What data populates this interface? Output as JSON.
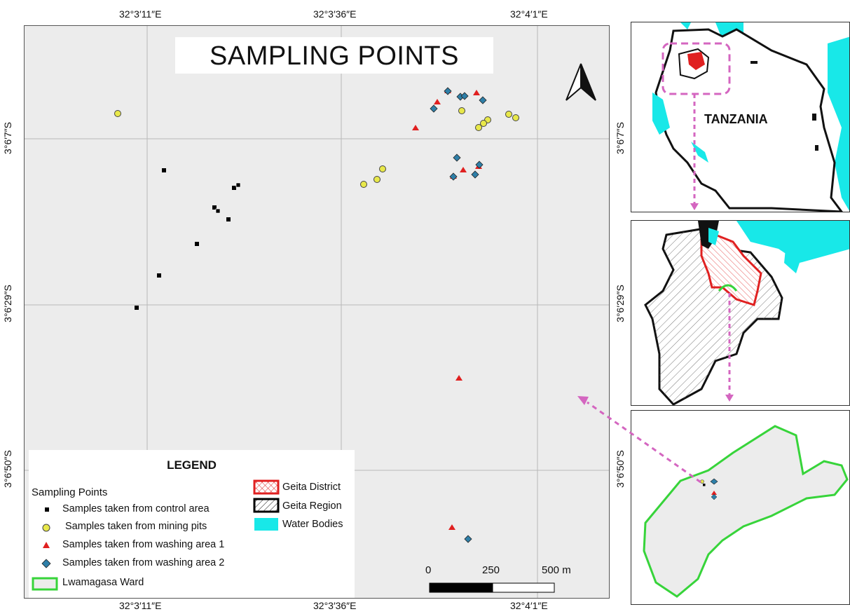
{
  "map": {
    "title": "SAMPLING POINTS",
    "coords": {
      "top": [
        "32°3′11″E",
        "32°3′36″E",
        "32°4′1″E"
      ],
      "bottom": [
        "32°3′11″E",
        "32°3′36″E",
        "32°4′1″E"
      ],
      "left": [
        "3°6′7″S",
        "3°6′29″S",
        "3°6′50″S"
      ],
      "right": [
        "3°6′7″S",
        "3°6′29″S",
        "3°6′50″S"
      ]
    },
    "north_arrow": "north-arrow",
    "scale": {
      "labels": [
        "0",
        "250",
        "500 m"
      ]
    }
  },
  "legend": {
    "title": "LEGEND",
    "subtitle": "Sampling Points",
    "items": [
      {
        "label": "Samples taken from control area",
        "symbol": "black-square",
        "color": "#000000"
      },
      {
        "label": "Samples taken from mining pits",
        "symbol": "yellow-circle",
        "color": "#e8e84a"
      },
      {
        "label": "Samples taken from washing area 1",
        "symbol": "red-triangle",
        "color": "#e02020"
      },
      {
        "label": "Samples taken from washing area 2",
        "symbol": "blue-diamond",
        "color": "#2e7fa8"
      },
      {
        "label": "Lwamagasa Ward",
        "symbol": "green-outline-box",
        "color": "#37d43a"
      }
    ],
    "items_right": [
      {
        "label": "Geita District",
        "symbol": "red-hatched-box",
        "color": "#e02020"
      },
      {
        "label": "Geita Region",
        "symbol": "black-hatched-box",
        "color": "#000000"
      },
      {
        "label": "Water Bodies",
        "symbol": "cyan-box",
        "color": "#18e8e8"
      }
    ]
  },
  "insets": {
    "country_label": "TANZANIA",
    "water_color": "#18e8e8",
    "arrow_color": "#d466c0"
  }
}
